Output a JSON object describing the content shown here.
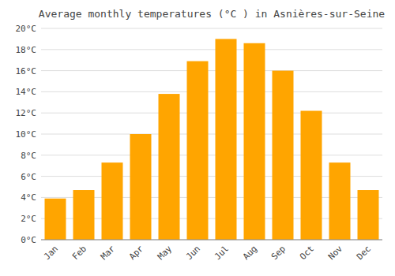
{
  "chart_data": {
    "type": "bar",
    "title": "Average monthly temperatures (°C ) in Asnières-sur-Seine",
    "categories": [
      "Jan",
      "Feb",
      "Mar",
      "Apr",
      "May",
      "Jun",
      "Jul",
      "Aug",
      "Sep",
      "Oct",
      "Nov",
      "Dec"
    ],
    "values": [
      3.9,
      4.7,
      7.3,
      10.0,
      13.8,
      16.9,
      19.0,
      18.6,
      16.0,
      12.2,
      7.3,
      4.7
    ],
    "color": "#FFA500",
    "ylim": [
      0,
      20
    ],
    "yticks": [
      {
        "value": 0,
        "label": "0°C"
      },
      {
        "value": 2,
        "label": "2°C"
      },
      {
        "value": 4,
        "label": "4°C"
      },
      {
        "value": 6,
        "label": "6°C"
      },
      {
        "value": 8,
        "label": "8°C"
      },
      {
        "value": 10,
        "label": "10°C"
      },
      {
        "value": 12,
        "label": "12°C"
      },
      {
        "value": 14,
        "label": "14°C"
      },
      {
        "value": 16,
        "label": "16°C"
      },
      {
        "value": 18,
        "label": "18°C"
      },
      {
        "value": 20,
        "label": "20°C"
      }
    ],
    "grid": true
  }
}
